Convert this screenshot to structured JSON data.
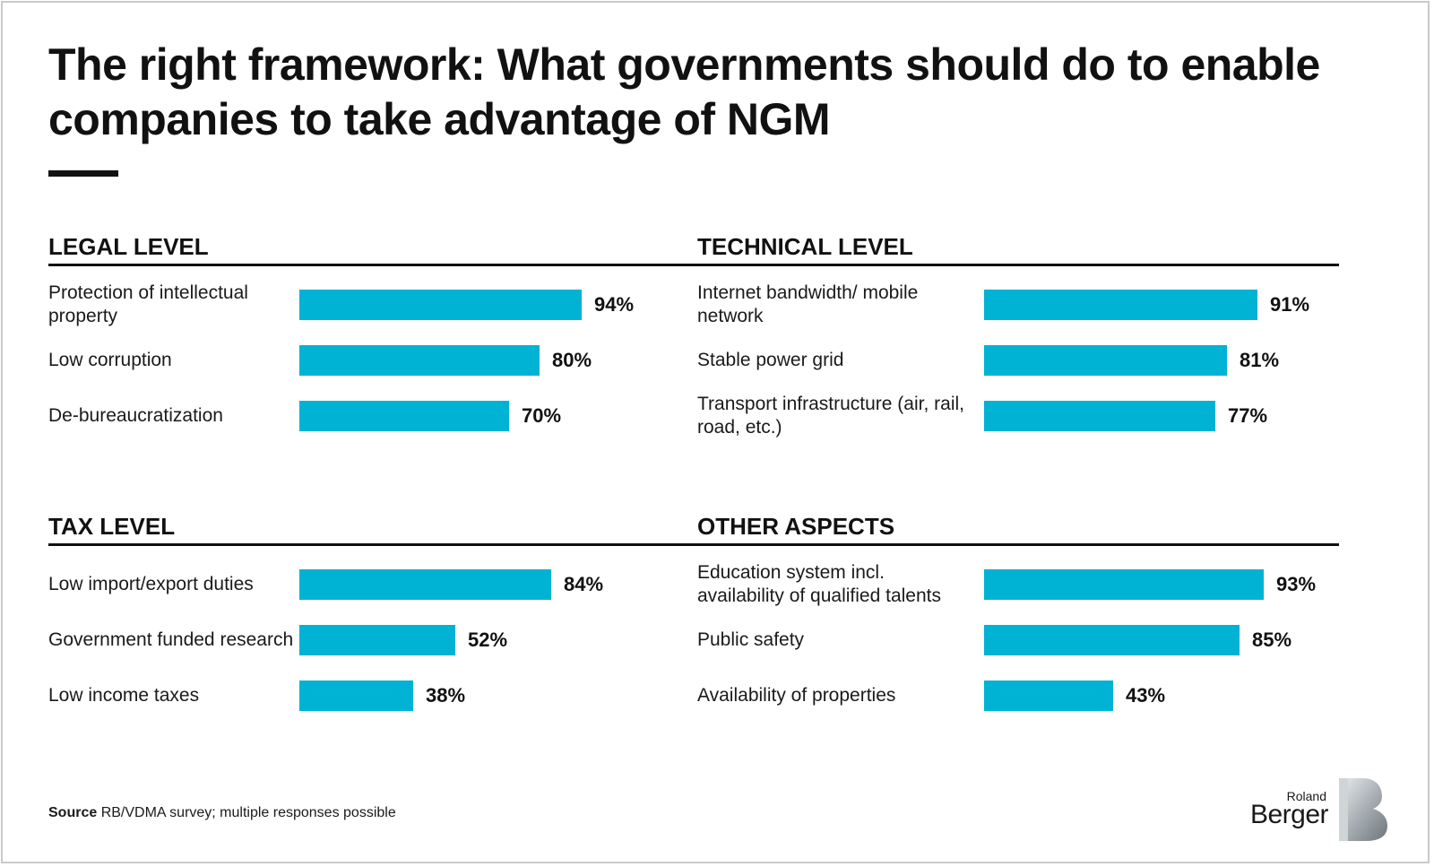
{
  "title": "The right framework: What governments should do to enable companies to take advantage of NGM",
  "bar_color": "#00b2d3",
  "chart_data": [
    {
      "type": "bar",
      "title": "LEGAL LEVEL",
      "categories": [
        "Protection of intellectual property",
        "Low corruption",
        "De-bureaucratization"
      ],
      "values": [
        94,
        80,
        70
      ],
      "labels": [
        "94%",
        "80%",
        "70%"
      ],
      "xlim": [
        0,
        100
      ]
    },
    {
      "type": "bar",
      "title": "TECHNICAL LEVEL",
      "categories": [
        "Internet bandwidth/ mobile network",
        "Stable power grid",
        "Transport infrastructure (air, rail, road, etc.)"
      ],
      "values": [
        91,
        81,
        77
      ],
      "labels": [
        "91%",
        "81%",
        "77%"
      ],
      "xlim": [
        0,
        100
      ]
    },
    {
      "type": "bar",
      "title": "TAX LEVEL",
      "categories": [
        "Low import/export duties",
        "Government funded research",
        "Low income taxes"
      ],
      "values": [
        84,
        52,
        38
      ],
      "labels": [
        "84%",
        "52%",
        "38%"
      ],
      "xlim": [
        0,
        100
      ]
    },
    {
      "type": "bar",
      "title": "OTHER ASPECTS",
      "categories": [
        "Education system incl. availability of qualified talents",
        "Public safety",
        "Availability of properties"
      ],
      "values": [
        93,
        85,
        43
      ],
      "labels": [
        "93%",
        "85%",
        "43%"
      ],
      "xlim": [
        0,
        100
      ]
    }
  ],
  "source": {
    "label": "Source",
    "text": "RB/VDMA survey; multiple responses possible"
  },
  "logo": {
    "line1": "Roland",
    "line2": "Berger"
  }
}
